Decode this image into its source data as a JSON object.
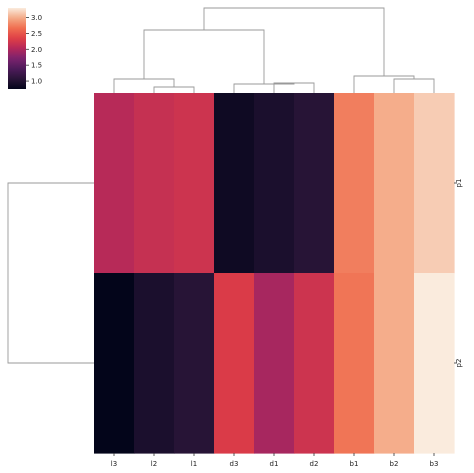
{
  "chart_data": {
    "type": "heatmap",
    "title": "",
    "columns": [
      "l3",
      "l2",
      "l1",
      "d3",
      "d1",
      "d2",
      "b1",
      "b2",
      "b3"
    ],
    "rows": [
      "p1",
      "p2"
    ],
    "row_tick_labels": [
      "p1",
      "p2"
    ],
    "values": [
      [
        2.05,
        2.15,
        2.2,
        0.85,
        0.95,
        1.05,
        2.75,
        3.0,
        3.15
      ],
      [
        0.75,
        0.95,
        1.05,
        2.3,
        1.95,
        2.2,
        2.7,
        3.0,
        3.3
      ]
    ],
    "colorbar": {
      "min": 0.75,
      "max": 3.3,
      "ticks": [
        "1.0",
        "1.5",
        "2.0",
        "2.5",
        "3.0"
      ],
      "tick_values": [
        1.0,
        1.5,
        2.0,
        2.5,
        3.0
      ],
      "colormap": "rocket"
    },
    "column_dendrogram": "leaf order l3 l2 l1 | d3 d1 d2 | b1 b2 b3; groups l and d merge before b",
    "row_dendrogram": "p1 and p2 merge at root",
    "grid": false
  }
}
